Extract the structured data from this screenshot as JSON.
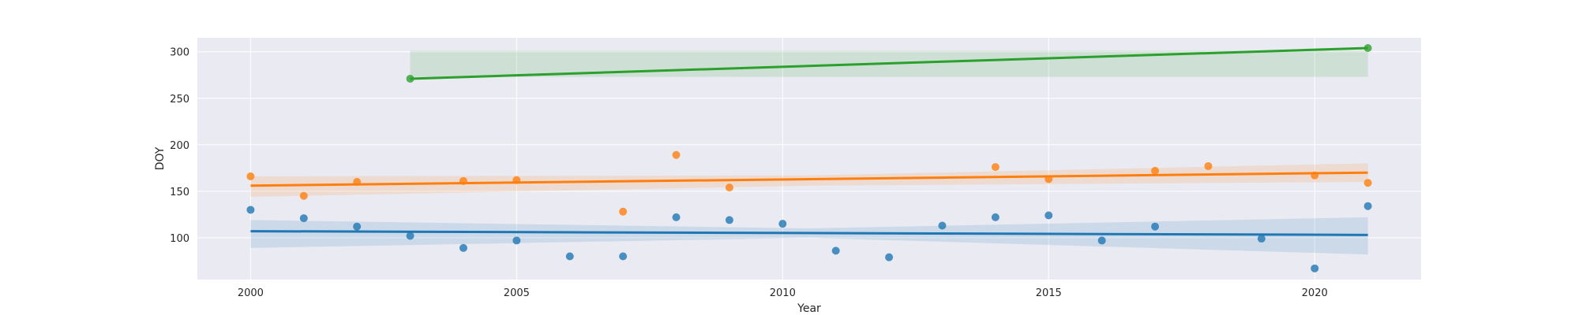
{
  "chart_data": {
    "type": "scatter",
    "title": "",
    "xlabel": "Year",
    "ylabel": "DOY",
    "xlim": [
      1999,
      2022
    ],
    "ylim": [
      55,
      315
    ],
    "x_ticks": [
      2000,
      2005,
      2010,
      2015,
      2020
    ],
    "y_ticks": [
      100,
      150,
      200,
      250,
      300
    ],
    "grid": true,
    "background": "#eaeaf2",
    "series": [
      {
        "color": "#1f77b4",
        "points": [
          [
            2000,
            130
          ],
          [
            2001,
            121
          ],
          [
            2002,
            112
          ],
          [
            2003,
            102
          ],
          [
            2004,
            89
          ],
          [
            2005,
            97
          ],
          [
            2006,
            80
          ],
          [
            2007,
            80
          ],
          [
            2008,
            122
          ],
          [
            2009,
            119
          ],
          [
            2010,
            115
          ],
          [
            2011,
            86
          ],
          [
            2012,
            79
          ],
          [
            2013,
            113
          ],
          [
            2014,
            122
          ],
          [
            2015,
            124
          ],
          [
            2016,
            97
          ],
          [
            2017,
            112
          ],
          [
            2019,
            99
          ],
          [
            2020,
            67
          ],
          [
            2021,
            134
          ]
        ],
        "fit": {
          "x": [
            2000,
            2021
          ],
          "y": [
            107,
            103
          ]
        },
        "ci": {
          "x": [
            2000,
            2010.5,
            2021
          ],
          "upper": [
            119,
            110,
            122
          ],
          "lower": [
            89,
            100,
            82
          ]
        }
      },
      {
        "color": "#ff7f0e",
        "points": [
          [
            2000,
            166
          ],
          [
            2001,
            145
          ],
          [
            2002,
            160
          ],
          [
            2004,
            161
          ],
          [
            2005,
            162
          ],
          [
            2007,
            128
          ],
          [
            2008,
            189
          ],
          [
            2009,
            154
          ],
          [
            2014,
            176
          ],
          [
            2015,
            163
          ],
          [
            2017,
            172
          ],
          [
            2018,
            177
          ],
          [
            2020,
            167
          ],
          [
            2021,
            159
          ]
        ],
        "fit": {
          "x": [
            2000,
            2021
          ],
          "y": [
            156,
            170
          ]
        },
        "ci": {
          "x": [
            2000,
            2010.5,
            2021
          ],
          "upper": [
            166,
            167,
            180
          ],
          "lower": [
            144,
            156,
            160
          ]
        }
      },
      {
        "color": "#2ca02c",
        "points": [
          [
            2003,
            271
          ],
          [
            2021,
            304
          ]
        ],
        "fit": {
          "x": [
            2003,
            2021
          ],
          "y": [
            271,
            304
          ]
        },
        "ci": {
          "x": [
            2003,
            2021
          ],
          "upper": [
            301,
            301
          ],
          "lower": [
            273,
            273
          ]
        }
      }
    ]
  }
}
